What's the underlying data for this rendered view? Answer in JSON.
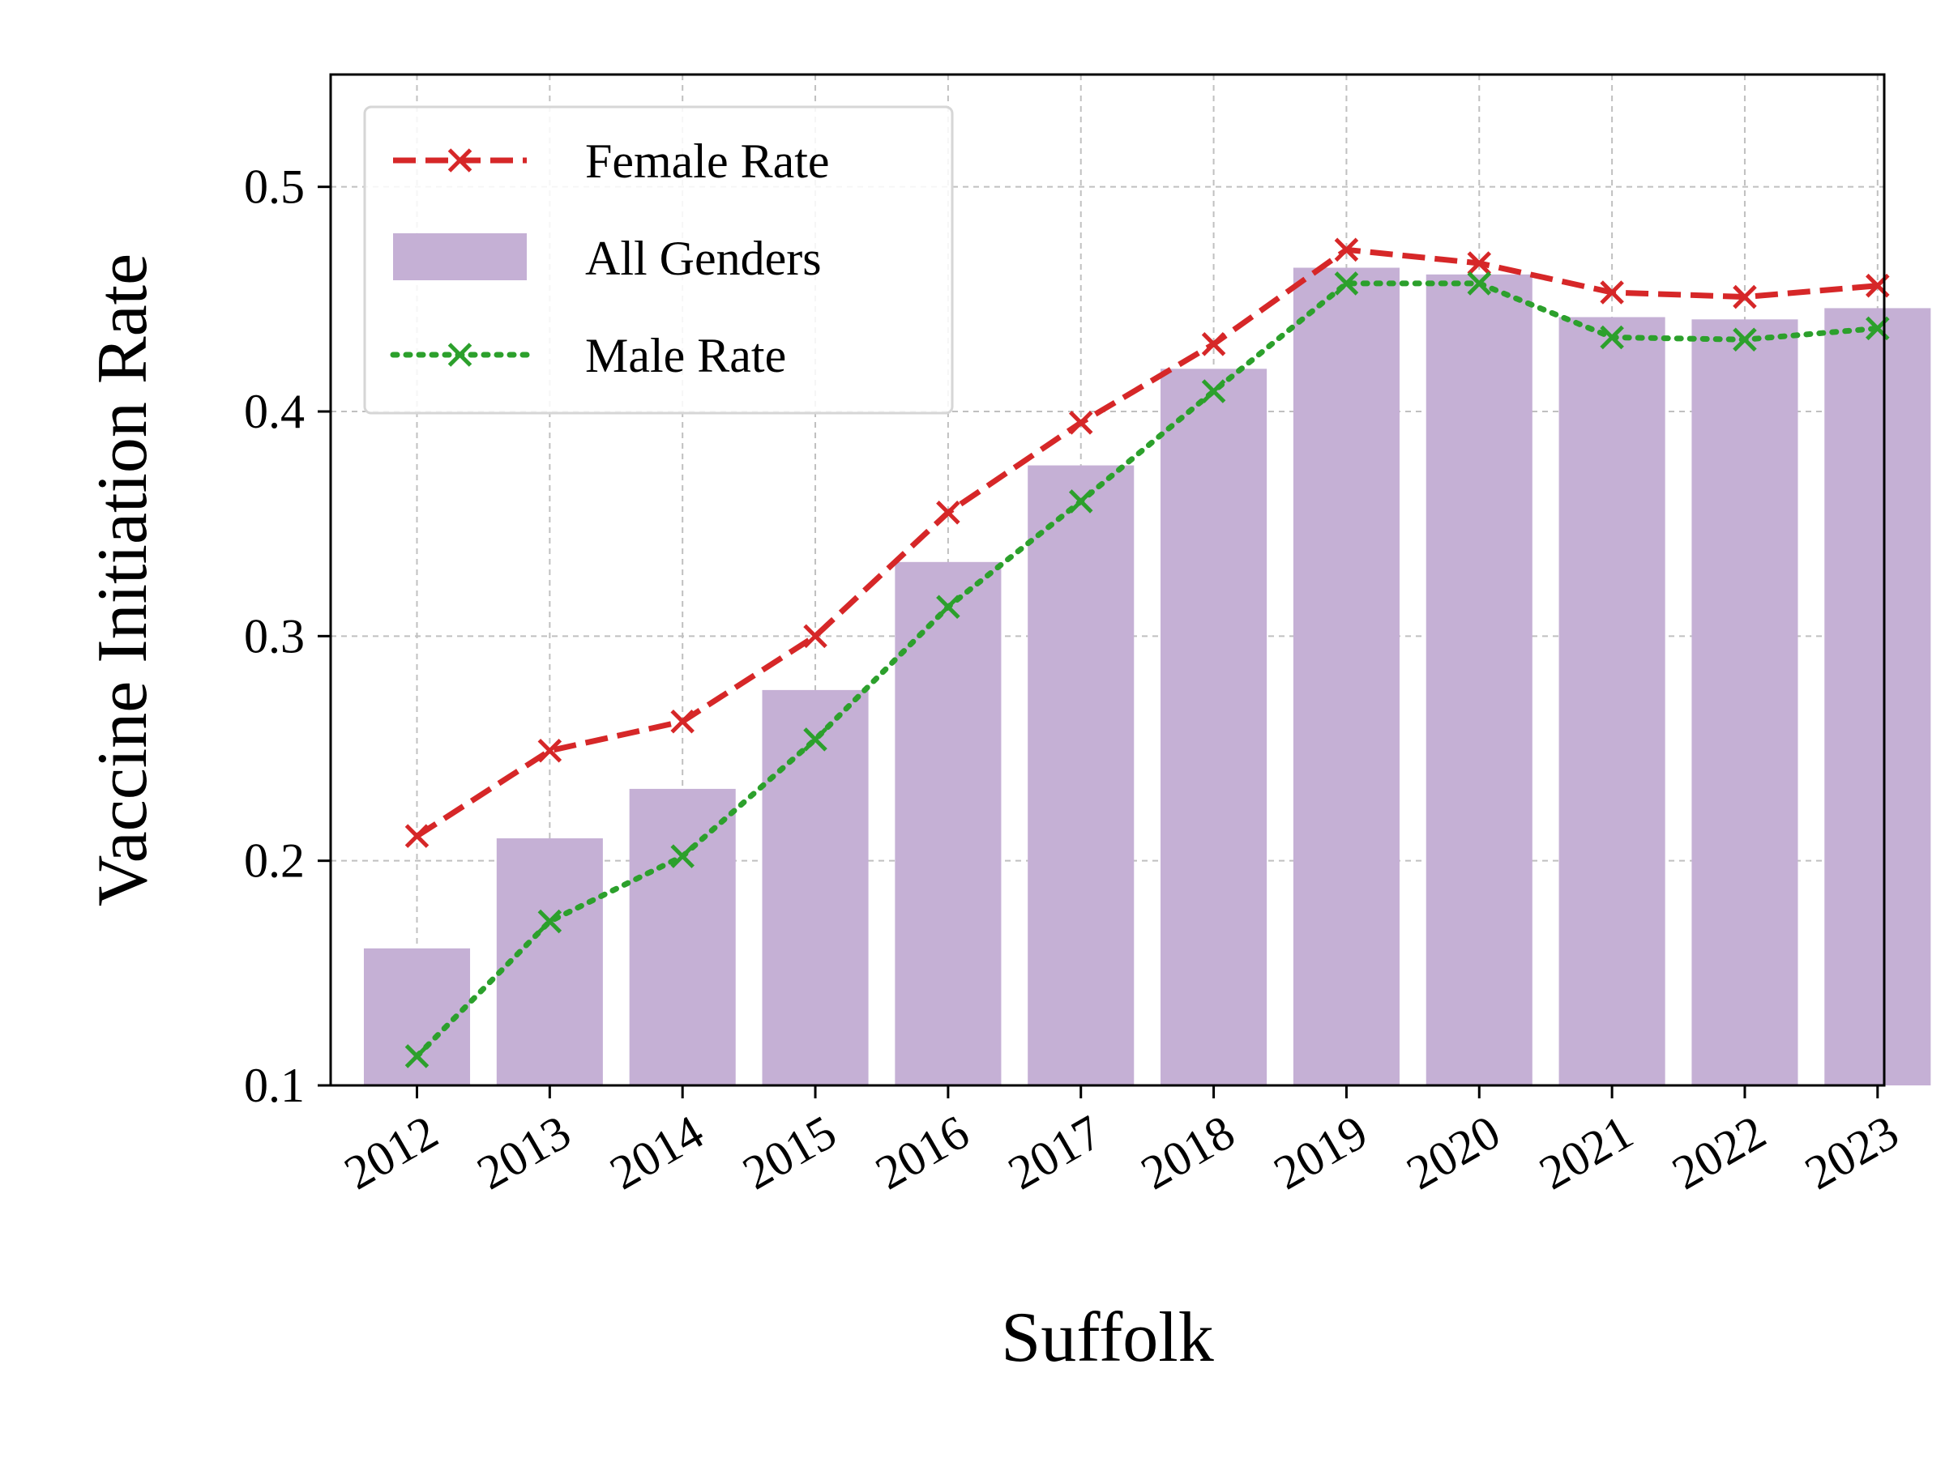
{
  "chart_data": {
    "type": "bar",
    "title": "",
    "xlabel": "Suffolk",
    "ylabel": "Vaccine Initiation Rate",
    "categories": [
      "2012",
      "2013",
      "2014",
      "2015",
      "2016",
      "2017",
      "2018",
      "2019",
      "2020",
      "2021",
      "2022",
      "2023"
    ],
    "ylim": [
      0.1,
      0.55
    ],
    "yticks": [
      "0.1",
      "0.2",
      "0.3",
      "0.4",
      "0.5"
    ],
    "grid": true,
    "legend_position": "top-left",
    "series": [
      {
        "name": "Female Rate",
        "kind": "line",
        "line_style": "dashed",
        "marker": "x",
        "color": "#d62728",
        "values": [
          0.211,
          0.249,
          0.262,
          0.3,
          0.355,
          0.395,
          0.43,
          0.472,
          0.466,
          0.453,
          0.451,
          0.456
        ]
      },
      {
        "name": "All Genders",
        "kind": "bar",
        "color": "#c5b0d5",
        "values": [
          0.161,
          0.21,
          0.232,
          0.276,
          0.333,
          0.376,
          0.419,
          0.464,
          0.461,
          0.442,
          0.441,
          0.446
        ]
      },
      {
        "name": "Male Rate",
        "kind": "line",
        "line_style": "dotted",
        "marker": "x",
        "color": "#2ca02c",
        "values": [
          0.113,
          0.173,
          0.202,
          0.254,
          0.313,
          0.36,
          0.409,
          0.457,
          0.457,
          0.433,
          0.432,
          0.437
        ]
      }
    ]
  }
}
